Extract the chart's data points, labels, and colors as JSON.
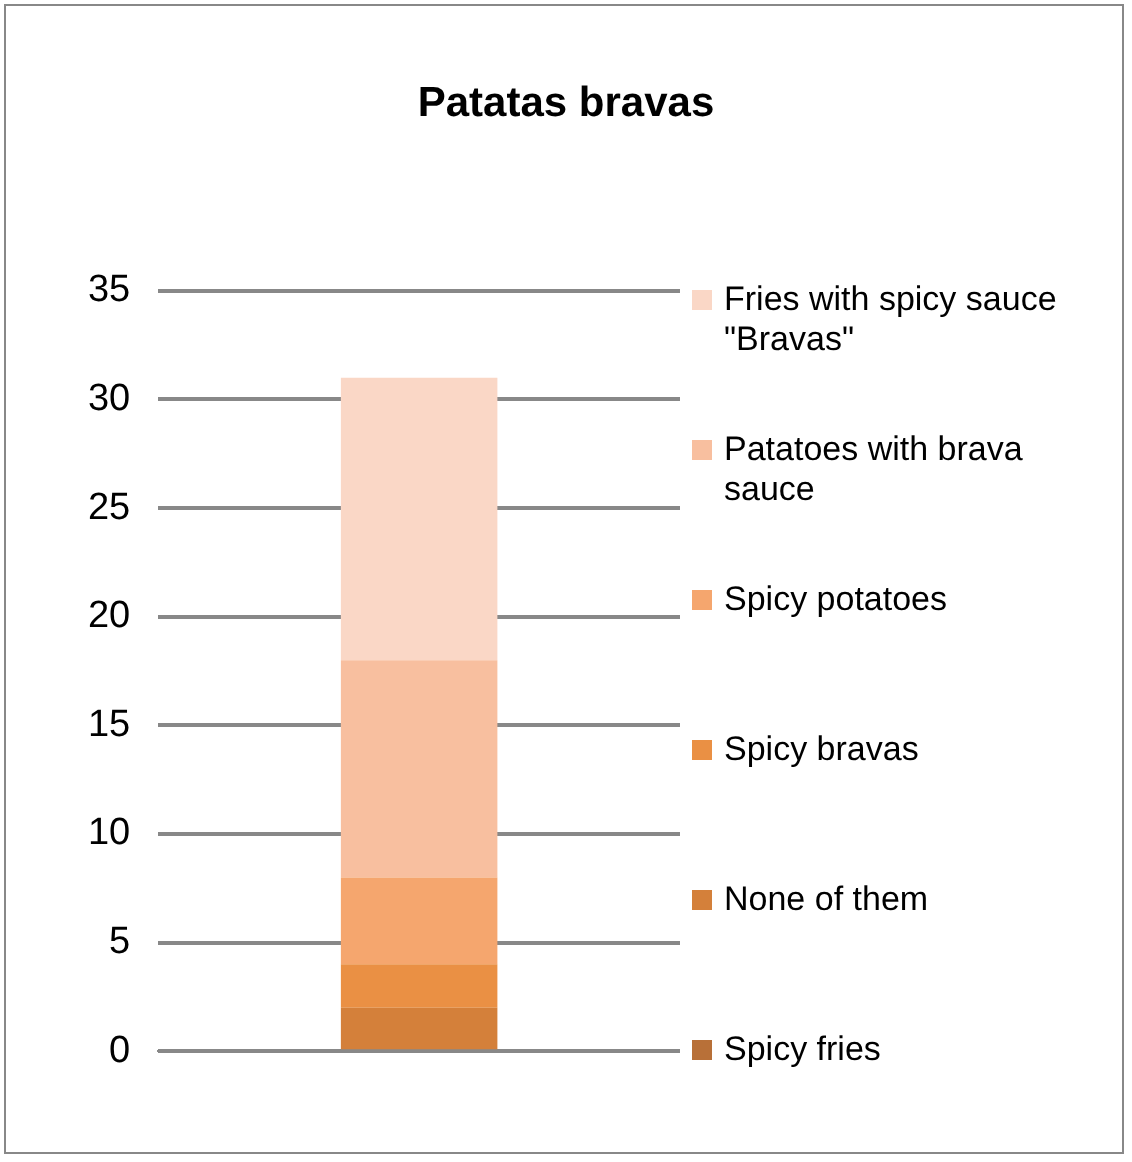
{
  "chart_data": {
    "type": "bar",
    "title": "Patatas bravas",
    "categories": [
      null
    ],
    "stacked": true,
    "series": [
      {
        "name": "Spicy fries",
        "color": "#b87038",
        "values": [
          0
        ]
      },
      {
        "name": "None of them",
        "color": "#d4803a",
        "values": [
          2
        ]
      },
      {
        "name": "Spicy bravas",
        "color": "#ea9044",
        "values": [
          2
        ]
      },
      {
        "name": "Spicy potatoes",
        "color": "#f5a66e",
        "values": [
          4
        ]
      },
      {
        "name": "Patatoes with brava sauce",
        "color": "#f8bf9f",
        "values": [
          10
        ]
      },
      {
        "name": "Fries with spicy sauce \"Bravas\"",
        "color": "#fad7c6",
        "values": [
          13
        ]
      }
    ],
    "ylim": [
      0,
      35
    ],
    "yticks": [
      0,
      5,
      10,
      15,
      20,
      25,
      30,
      35
    ],
    "grid": "y",
    "legend": "right"
  }
}
